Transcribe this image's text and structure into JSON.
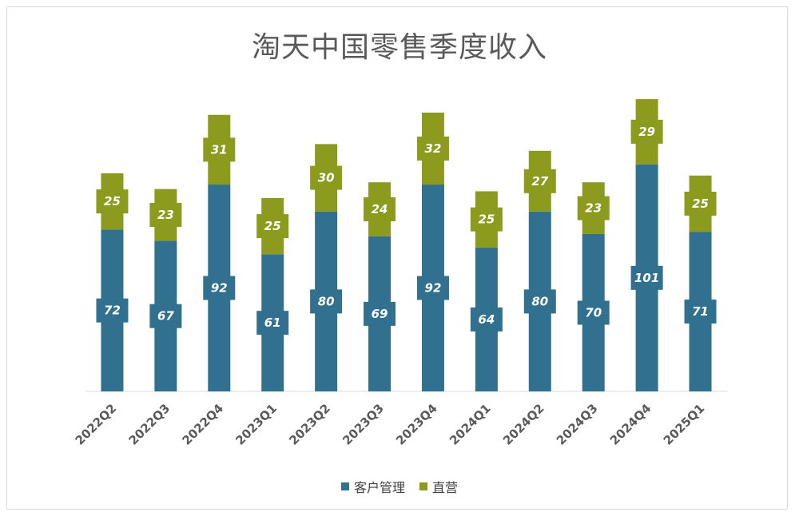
{
  "chart_data": {
    "type": "bar",
    "stacked": true,
    "title": "淘天中国零售季度收入",
    "categories": [
      "2022Q2",
      "2022Q3",
      "2022Q4",
      "2023Q1",
      "2023Q2",
      "2023Q3",
      "2023Q4",
      "2024Q1",
      "2024Q2",
      "2024Q3",
      "2024Q4",
      "2025Q1"
    ],
    "series": [
      {
        "name": "客户管理",
        "color": "#31708f",
        "values": [
          72,
          67,
          92,
          61,
          80,
          69,
          92,
          64,
          80,
          70,
          101,
          71
        ]
      },
      {
        "name": "直营",
        "color": "#8c9a1e",
        "values": [
          25,
          23,
          31,
          25,
          30,
          24,
          32,
          25,
          27,
          23,
          29,
          25
        ]
      }
    ],
    "ylim": [
      0,
      135
    ],
    "legend_position": "bottom",
    "grid": false
  }
}
